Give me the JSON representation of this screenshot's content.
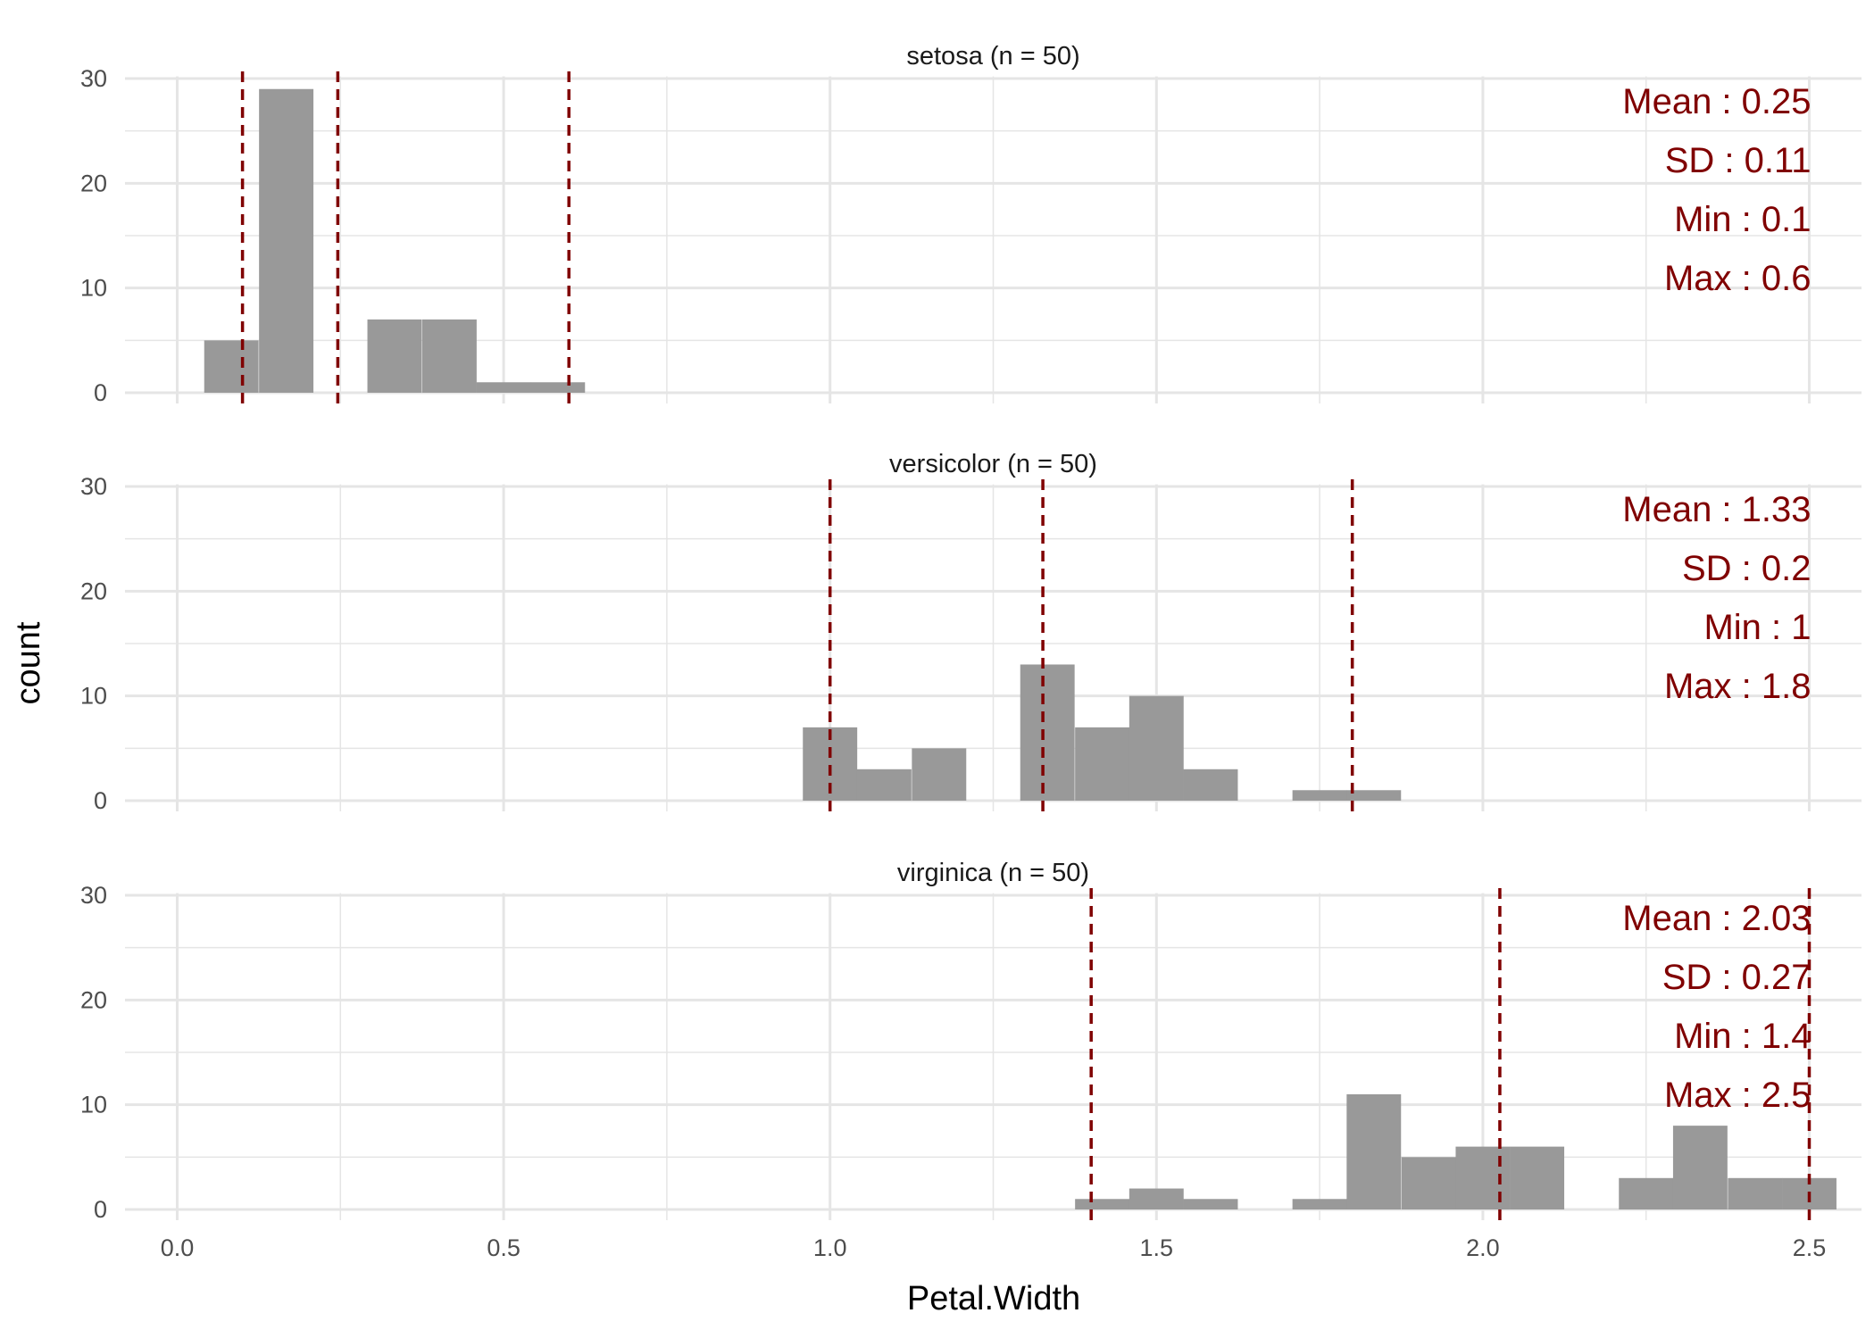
{
  "chart_data": {
    "type": "bar",
    "subtype": "faceted histogram",
    "xlabel": "Petal.Width",
    "ylabel": "count",
    "xlim": [
      -0.08,
      2.58
    ],
    "ylim": [
      0,
      30
    ],
    "x_ticks": [
      0.0,
      0.5,
      1.0,
      1.5,
      2.0,
      2.5
    ],
    "x_tick_labels": [
      "0.0",
      "0.5",
      "1.0",
      "1.5",
      "2.0",
      "2.5"
    ],
    "y_ticks": [
      0,
      10,
      20,
      30
    ],
    "y_tick_labels": [
      "0",
      "10",
      "20",
      "30"
    ],
    "bin_width": 0.0833,
    "grid": true,
    "colors": {
      "bar": "#999999",
      "reference_line": "#800000",
      "stat_text": "#800000",
      "grid": "#e5e5e5"
    },
    "panels": [
      {
        "title": "setosa (n = 50)",
        "bins": [
          {
            "x": 0.083,
            "count": 5
          },
          {
            "x": 0.167,
            "count": 29
          },
          {
            "x": 0.333,
            "count": 7
          },
          {
            "x": 0.417,
            "count": 7
          },
          {
            "x": 0.5,
            "count": 1
          },
          {
            "x": 0.583,
            "count": 1
          }
        ],
        "reference_lines": [
          0.1,
          0.246,
          0.6
        ],
        "stats": [
          "Mean : 0.25",
          "SD : 0.11",
          "Min : 0.1",
          "Max : 0.6"
        ]
      },
      {
        "title": "versicolor (n = 50)",
        "bins": [
          {
            "x": 1.0,
            "count": 7
          },
          {
            "x": 1.083,
            "count": 3
          },
          {
            "x": 1.167,
            "count": 5
          },
          {
            "x": 1.333,
            "count": 13
          },
          {
            "x": 1.417,
            "count": 7
          },
          {
            "x": 1.5,
            "count": 10
          },
          {
            "x": 1.583,
            "count": 3
          },
          {
            "x": 1.75,
            "count": 1
          },
          {
            "x": 1.833,
            "count": 1
          }
        ],
        "reference_lines": [
          1.0,
          1.326,
          1.8
        ],
        "stats": [
          "Mean : 1.33",
          "SD : 0.2",
          "Min : 1",
          "Max : 1.8"
        ]
      },
      {
        "title": "virginica (n = 50)",
        "bins": [
          {
            "x": 1.417,
            "count": 1
          },
          {
            "x": 1.5,
            "count": 2
          },
          {
            "x": 1.583,
            "count": 1
          },
          {
            "x": 1.75,
            "count": 1
          },
          {
            "x": 1.833,
            "count": 11
          },
          {
            "x": 1.917,
            "count": 5
          },
          {
            "x": 2.0,
            "count": 6
          },
          {
            "x": 2.083,
            "count": 6
          },
          {
            "x": 2.25,
            "count": 3
          },
          {
            "x": 2.333,
            "count": 8
          },
          {
            "x": 2.417,
            "count": 3
          },
          {
            "x": 2.5,
            "count": 3
          }
        ],
        "reference_lines": [
          1.4,
          2.026,
          2.5
        ],
        "stats": [
          "Mean : 2.03",
          "SD : 0.27",
          "Min : 1.4",
          "Max : 2.5"
        ]
      }
    ]
  }
}
